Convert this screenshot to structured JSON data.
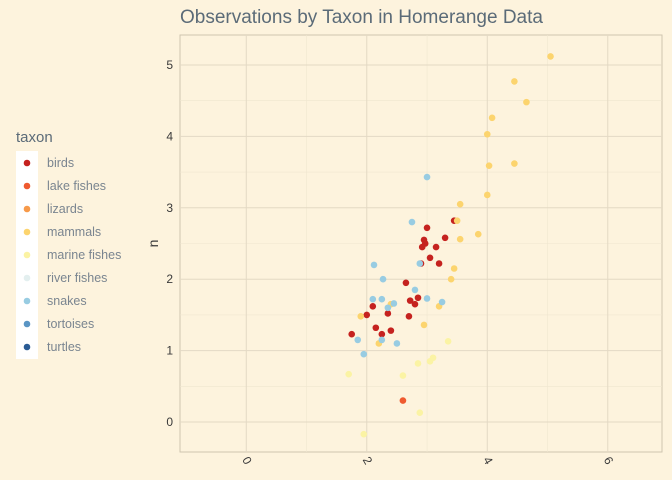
{
  "chart_data": {
    "type": "scatter",
    "title": "Observations by Taxon in Homerange Data",
    "xlabel": "",
    "ylabel": "n",
    "xlim": [
      -1.1,
      6.9
    ],
    "ylim": [
      -0.42,
      5.42
    ],
    "x_ticks": [
      0,
      2,
      4,
      6
    ],
    "y_ticks": [
      0,
      1,
      2,
      3,
      4,
      5
    ],
    "x_tick_rotation": 60,
    "grid": true,
    "legend": {
      "title": "taxon",
      "position": "left"
    },
    "series": [
      {
        "name": "birds",
        "color": "#C5221F",
        "points": [
          [
            1.75,
            1.23
          ],
          [
            2.0,
            1.5
          ],
          [
            2.1,
            1.62
          ],
          [
            2.15,
            1.32
          ],
          [
            2.25,
            1.23
          ],
          [
            2.35,
            1.52
          ],
          [
            2.4,
            1.28
          ],
          [
            2.65,
            1.95
          ],
          [
            2.7,
            1.48
          ],
          [
            2.72,
            1.7
          ],
          [
            2.8,
            1.65
          ],
          [
            2.85,
            1.74
          ],
          [
            2.9,
            2.22
          ],
          [
            2.92,
            2.45
          ],
          [
            2.95,
            2.55
          ],
          [
            2.97,
            2.5
          ],
          [
            3.0,
            2.72
          ],
          [
            3.05,
            2.3
          ],
          [
            3.15,
            2.45
          ],
          [
            3.2,
            2.22
          ],
          [
            3.3,
            2.58
          ],
          [
            3.45,
            2.82
          ]
        ]
      },
      {
        "name": "lake fishes",
        "color": "#EF5A2F",
        "points": [
          [
            2.6,
            0.3
          ]
        ]
      },
      {
        "name": "lizards",
        "color": "#F79A4A",
        "points": []
      },
      {
        "name": "mammals",
        "color": "#FCD46E",
        "points": [
          [
            1.9,
            1.48
          ],
          [
            2.2,
            1.1
          ],
          [
            2.4,
            1.65
          ],
          [
            2.95,
            1.36
          ],
          [
            3.2,
            1.62
          ],
          [
            3.4,
            2.0
          ],
          [
            3.45,
            2.15
          ],
          [
            3.5,
            2.82
          ],
          [
            3.55,
            3.05
          ],
          [
            3.55,
            2.56
          ],
          [
            3.85,
            2.63
          ],
          [
            4.0,
            3.18
          ],
          [
            4.0,
            4.03
          ],
          [
            4.03,
            3.59
          ],
          [
            4.08,
            4.26
          ],
          [
            4.45,
            3.62
          ],
          [
            4.45,
            4.77
          ],
          [
            4.65,
            4.48
          ],
          [
            5.05,
            5.12
          ]
        ]
      },
      {
        "name": "marine fishes",
        "color": "#FBF3A4",
        "points": [
          [
            1.7,
            0.67
          ],
          [
            1.95,
            -0.17
          ],
          [
            2.6,
            0.65
          ],
          [
            2.85,
            0.82
          ],
          [
            2.88,
            0.13
          ],
          [
            3.05,
            0.85
          ],
          [
            3.1,
            0.9
          ],
          [
            3.35,
            1.13
          ]
        ]
      },
      {
        "name": "river fishes",
        "color": "#E3EFEF",
        "points": []
      },
      {
        "name": "snakes",
        "color": "#98CCE2",
        "points": [
          [
            1.85,
            1.15
          ],
          [
            1.95,
            0.95
          ],
          [
            2.1,
            1.72
          ],
          [
            2.12,
            2.2
          ],
          [
            2.25,
            1.72
          ],
          [
            2.25,
            1.15
          ],
          [
            2.27,
            2.0
          ],
          [
            2.35,
            1.6
          ],
          [
            2.45,
            1.66
          ],
          [
            2.5,
            1.1
          ],
          [
            2.75,
            2.8
          ],
          [
            2.8,
            1.85
          ],
          [
            2.88,
            2.22
          ],
          [
            3.0,
            1.73
          ],
          [
            3.0,
            3.43
          ],
          [
            3.25,
            1.68
          ]
        ]
      },
      {
        "name": "tortoises",
        "color": "#5A95C4",
        "points": []
      },
      {
        "name": "turtles",
        "color": "#2A5B94",
        "points": []
      }
    ]
  }
}
